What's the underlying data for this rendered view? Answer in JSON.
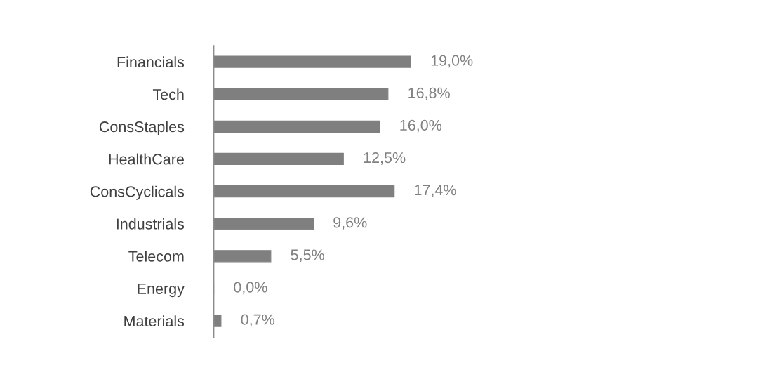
{
  "chart_data": {
    "type": "bar",
    "orientation": "horizontal",
    "categories": [
      "Financials",
      "Tech",
      "ConsStaples",
      "HealthCare",
      "ConsCyclicals",
      "Industrials",
      "Telecom",
      "Energy",
      "Materials"
    ],
    "values": [
      19.0,
      16.8,
      16.0,
      12.5,
      17.4,
      9.6,
      5.5,
      0.0,
      0.7
    ],
    "value_labels": [
      "19,0%",
      "16,8%",
      "16,0%",
      "12,5%",
      "17,4%",
      "9,6%",
      "5,5%",
      "0,0%",
      "0,7%"
    ],
    "color": "#7f7f7f",
    "grid": false,
    "legend": false,
    "tick_labels": "y"
  }
}
